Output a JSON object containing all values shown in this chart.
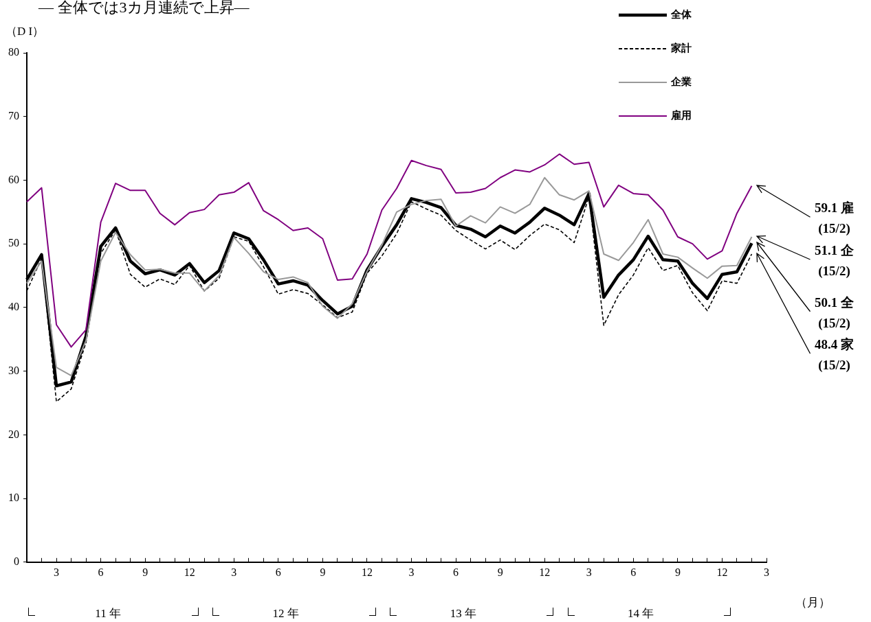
{
  "chart_data": {
    "type": "line",
    "title": "― 全体では3カ月連続で上昇―",
    "ylabel": "（D I）",
    "xlabel": "（月）",
    "categories": [
      null,
      null,
      "3",
      null,
      null,
      "6",
      null,
      null,
      "9",
      null,
      null,
      "12",
      null,
      null,
      "3",
      null,
      null,
      "6",
      null,
      null,
      "9",
      null,
      null,
      "12",
      null,
      null,
      "3",
      null,
      null,
      "6",
      null,
      null,
      "9",
      null,
      null,
      "12",
      null,
      null,
      "3",
      null,
      null,
      "6",
      null,
      null,
      "9",
      null,
      null,
      "12",
      null,
      null,
      "3"
    ],
    "series": [
      {
        "name": "全体",
        "color": "#000000",
        "line_style": "solid",
        "values": [
          44.4,
          48.3,
          27.7,
          28.3,
          35.5,
          49.6,
          52.5,
          47.3,
          45.3,
          45.9,
          45.1,
          46.9,
          43.9,
          45.8,
          51.7,
          50.8,
          47.5,
          43.7,
          44.2,
          43.5,
          41.1,
          39.0,
          40.2,
          45.9,
          49.6,
          53.0,
          57.1,
          56.5,
          55.7,
          52.9,
          52.3,
          51.1,
          52.8,
          51.7,
          53.4,
          55.6,
          54.5,
          53.0,
          57.9,
          41.6,
          45.1,
          47.5,
          51.2,
          47.5,
          47.3,
          43.8,
          41.4,
          45.2,
          45.6,
          50.1,
          null
        ]
      },
      {
        "name": "家計",
        "color": "#000000",
        "line_style": "dashed",
        "values": [
          42.6,
          47.7,
          25.2,
          27.2,
          34.5,
          48.5,
          52.2,
          45.2,
          43.2,
          44.5,
          43.6,
          46.6,
          42.6,
          44.6,
          51.1,
          50.4,
          46.4,
          42.1,
          42.8,
          42.2,
          40.4,
          38.4,
          39.3,
          45.4,
          48.1,
          51.6,
          56.6,
          55.5,
          54.5,
          52.1,
          50.6,
          49.2,
          50.6,
          49.1,
          51.3,
          53.1,
          52.2,
          50.2,
          57.4,
          37.2,
          42.0,
          45.1,
          49.4,
          45.8,
          46.6,
          42.3,
          39.5,
          44.2,
          43.8,
          48.4,
          null
        ]
      },
      {
        "name": "企業",
        "color": "#999999",
        "line_style": "solid",
        "values": [
          43.8,
          47.3,
          30.6,
          29.3,
          34.8,
          47.3,
          51.8,
          48.3,
          45.9,
          46.0,
          45.4,
          45.4,
          42.6,
          45.0,
          51.0,
          48.5,
          45.6,
          44.4,
          44.8,
          43.9,
          40.2,
          38.3,
          40.6,
          45.7,
          49.8,
          55.0,
          56.2,
          56.8,
          57.0,
          52.8,
          54.4,
          53.3,
          55.8,
          54.8,
          56.2,
          60.4,
          57.7,
          56.9,
          58.3,
          48.4,
          47.4,
          50.2,
          53.8,
          48.4,
          47.9,
          46.2,
          44.6,
          46.5,
          46.6,
          51.1,
          null
        ]
      },
      {
        "name": "雇用",
        "color": "#800080",
        "line_style": "solid",
        "values": [
          56.6,
          58.8,
          37.3,
          33.8,
          36.5,
          53.4,
          59.5,
          58.4,
          58.4,
          54.8,
          53.0,
          54.9,
          55.4,
          57.7,
          58.1,
          59.6,
          55.2,
          53.8,
          52.1,
          52.5,
          50.8,
          44.3,
          44.5,
          48.4,
          55.3,
          58.7,
          63.1,
          62.3,
          61.7,
          58.0,
          58.1,
          58.7,
          60.4,
          61.6,
          61.3,
          62.4,
          64.1,
          62.5,
          62.8,
          55.8,
          59.2,
          57.9,
          57.7,
          55.3,
          51.1,
          50.0,
          47.6,
          48.9,
          54.8,
          59.1,
          null
        ]
      }
    ],
    "ylim": [
      0,
      80
    ],
    "yticks": [
      0,
      10,
      20,
      30,
      40,
      50,
      60,
      70,
      80
    ],
    "grid": false,
    "legend": "top right",
    "marker": "none",
    "annotations": [
      "11 年",
      "12 年",
      "13 年",
      "14 年",
      "59.1 雇\n(15/2)",
      "51.1 企\n(15/2)",
      "50.1 全\n(15/2)",
      "48.4 家\n(15/2)"
    ]
  }
}
